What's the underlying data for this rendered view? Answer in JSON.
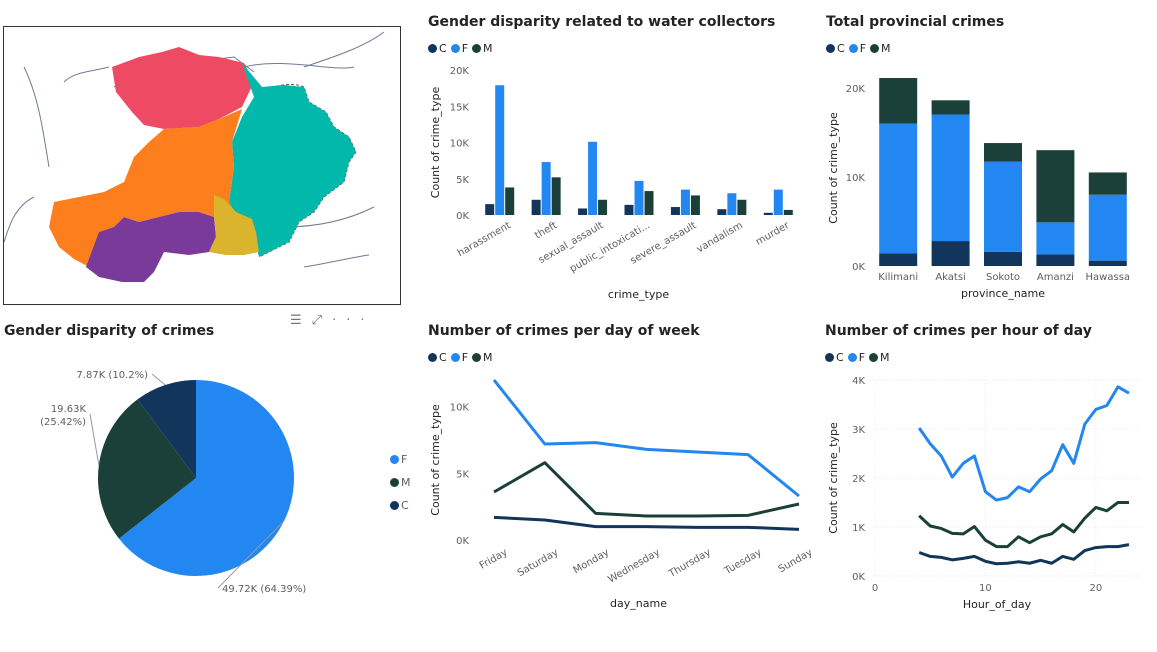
{
  "colors": {
    "C": "#12355b",
    "F": "#2287f0",
    "M": "#1b4039",
    "axis": "#605e5c",
    "grid": "#e8e8e8"
  },
  "legend": [
    "C",
    "F",
    "M"
  ],
  "map": {
    "regions": [
      {
        "name": "north",
        "color": "#ef4a63"
      },
      {
        "name": "east",
        "color": "#01b8aa"
      },
      {
        "name": "central",
        "color": "#fd7e1c"
      },
      {
        "name": "south",
        "color": "#7a3a99"
      },
      {
        "name": "southeast",
        "color": "#d9b42c"
      }
    ]
  },
  "focus_icons": {
    "filter": "☰",
    "expand": "⤢",
    "more": "···"
  },
  "chart_data": [
    {
      "id": "water",
      "type": "bar",
      "title": "Gender disparity related to water collectors",
      "xlabel": "crime_type",
      "ylabel": "Count of crime_type",
      "categories": [
        "harassment",
        "theft",
        "sexual_assault",
        "public_intoxicati...",
        "severe_assault",
        "vandalism",
        "murder"
      ],
      "series": [
        {
          "name": "C",
          "values": [
            1500,
            2100,
            900,
            1400,
            1100,
            800,
            300
          ]
        },
        {
          "name": "F",
          "values": [
            17900,
            7300,
            10100,
            4700,
            3500,
            3000,
            3500
          ]
        },
        {
          "name": "M",
          "values": [
            3800,
            5200,
            2100,
            3300,
            2700,
            2100,
            700
          ]
        }
      ],
      "ylim": [
        0,
        20000
      ],
      "yticks": [
        0,
        5000,
        10000,
        15000,
        20000
      ],
      "ytick_labels": [
        "0K",
        "5K",
        "10K",
        "15K",
        "20K"
      ],
      "grid": false
    },
    {
      "id": "provincial",
      "type": "bar",
      "stacked": true,
      "title": "Total provincial crimes",
      "xlabel": "province_name",
      "ylabel": "Count of crime_type",
      "categories": [
        "Kilimani",
        "Akatsi",
        "Sokoto",
        "Amanzi",
        "Hawassa"
      ],
      "series": [
        {
          "name": "C",
          "values": [
            1400,
            2800,
            1600,
            1300,
            600
          ]
        },
        {
          "name": "F",
          "values": [
            14600,
            14200,
            10100,
            3600,
            7400
          ]
        },
        {
          "name": "M",
          "values": [
            5100,
            1600,
            2100,
            8100,
            2500
          ]
        }
      ],
      "ylim": [
        0,
        22000
      ],
      "yticks": [
        0,
        10000,
        20000
      ],
      "ytick_labels": [
        "0K",
        "10K",
        "20K"
      ],
      "grid": false
    },
    {
      "id": "genderpie",
      "type": "pie",
      "title": "Gender disparity of crimes",
      "slices": [
        {
          "name": "F",
          "value": 49720,
          "label": "49.72K (64.39%)"
        },
        {
          "name": "M",
          "value": 19630,
          "label": "19.63K (25.42%)"
        },
        {
          "name": "C",
          "value": 7870,
          "label": "7.87K (10.2%)"
        }
      ],
      "legend": [
        "F",
        "M",
        "C"
      ]
    },
    {
      "id": "dayofweek",
      "type": "line",
      "title": "Number of crimes per day of week",
      "xlabel": "day_name",
      "ylabel": "Count of crime_type",
      "categories": [
        "Friday",
        "Saturday",
        "Monday",
        "Wednesday",
        "Thursday",
        "Tuesday",
        "Sunday"
      ],
      "series": [
        {
          "name": "C",
          "values": [
            1700,
            1500,
            1000,
            1000,
            950,
            950,
            800
          ]
        },
        {
          "name": "F",
          "values": [
            12000,
            7200,
            7300,
            6800,
            6600,
            6400,
            3300
          ]
        },
        {
          "name": "M",
          "values": [
            3600,
            5800,
            2000,
            1800,
            1800,
            1850,
            2700
          ]
        }
      ],
      "ylim": [
        0,
        12000
      ],
      "yticks": [
        0,
        5000,
        10000
      ],
      "ytick_labels": [
        "0K",
        "5K",
        "10K"
      ],
      "grid": false
    },
    {
      "id": "hourofday",
      "type": "line",
      "title": "Number of crimes per hour of day",
      "xlabel": "Hour_of_day",
      "ylabel": "Count of crime_type",
      "x": [
        4,
        5,
        6,
        7,
        8,
        9,
        10,
        11,
        12,
        13,
        14,
        15,
        16,
        17,
        18,
        19,
        20,
        21,
        22,
        23
      ],
      "series": [
        {
          "name": "C",
          "values": [
            480,
            400,
            380,
            330,
            360,
            400,
            300,
            250,
            260,
            290,
            260,
            320,
            260,
            400,
            340,
            520,
            580,
            600,
            600,
            640
          ]
        },
        {
          "name": "F",
          "values": [
            3020,
            2700,
            2450,
            2020,
            2300,
            2450,
            1720,
            1550,
            1600,
            1820,
            1720,
            1980,
            2150,
            2680,
            2300,
            3100,
            3400,
            3480,
            3860,
            3730
          ]
        },
        {
          "name": "M",
          "values": [
            1230,
            1020,
            970,
            870,
            860,
            1010,
            730,
            600,
            600,
            800,
            680,
            800,
            860,
            1050,
            900,
            1180,
            1400,
            1330,
            1500,
            1500
          ]
        }
      ],
      "xlim": [
        0,
        24
      ],
      "xticks": [
        0,
        10,
        20
      ],
      "ylim": [
        0,
        4000
      ],
      "yticks": [
        0,
        1000,
        2000,
        3000,
        4000
      ],
      "ytick_labels": [
        "0K",
        "1K",
        "2K",
        "3K",
        "4K"
      ],
      "grid": true
    }
  ]
}
